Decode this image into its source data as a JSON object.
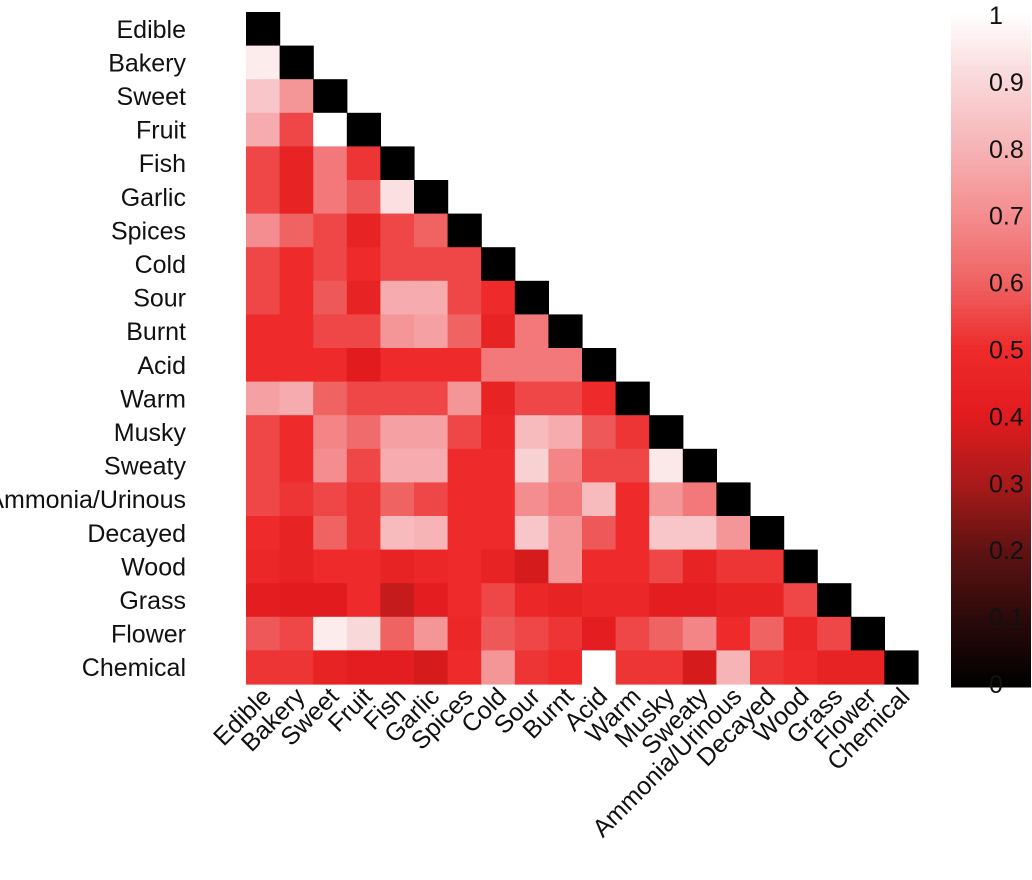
{
  "chart_data": {
    "type": "heatmap",
    "triangle": "lower",
    "categories": [
      "Edible",
      "Bakery",
      "Sweet",
      "Fruit",
      "Fish",
      "Garlic",
      "Spices",
      "Cold",
      "Sour",
      "Burnt",
      "Acid",
      "Warm",
      "Musky",
      "Sweaty",
      "Ammonia/Urinous",
      "Decayed",
      "Wood",
      "Grass",
      "Flower",
      "Chemical"
    ],
    "values": [
      [
        0
      ],
      [
        0.95,
        0
      ],
      [
        0.85,
        0.72,
        0
      ],
      [
        0.78,
        0.55,
        1.0,
        0
      ],
      [
        0.55,
        0.45,
        0.65,
        0.52,
        0
      ],
      [
        0.55,
        0.45,
        0.65,
        0.58,
        0.92,
        0
      ],
      [
        0.7,
        0.6,
        0.55,
        0.45,
        0.55,
        0.6,
        0
      ],
      [
        0.55,
        0.5,
        0.55,
        0.5,
        0.55,
        0.55,
        0.55,
        0
      ],
      [
        0.55,
        0.5,
        0.58,
        0.45,
        0.78,
        0.78,
        0.55,
        0.5,
        0
      ],
      [
        0.5,
        0.5,
        0.55,
        0.55,
        0.72,
        0.75,
        0.6,
        0.45,
        0.65,
        0
      ],
      [
        0.5,
        0.5,
        0.5,
        0.4,
        0.5,
        0.5,
        0.5,
        0.65,
        0.65,
        0.65,
        0
      ],
      [
        0.75,
        0.78,
        0.6,
        0.55,
        0.55,
        0.55,
        0.72,
        0.45,
        0.55,
        0.55,
        0.5,
        0
      ],
      [
        0.55,
        0.5,
        0.68,
        0.62,
        0.75,
        0.75,
        0.55,
        0.48,
        0.82,
        0.78,
        0.58,
        0.52,
        0
      ],
      [
        0.55,
        0.5,
        0.7,
        0.55,
        0.78,
        0.78,
        0.5,
        0.5,
        0.88,
        0.68,
        0.55,
        0.55,
        0.94,
        0
      ],
      [
        0.55,
        0.52,
        0.55,
        0.52,
        0.6,
        0.55,
        0.5,
        0.5,
        0.7,
        0.65,
        0.82,
        0.5,
        0.72,
        0.65,
        0
      ],
      [
        0.5,
        0.45,
        0.6,
        0.52,
        0.82,
        0.8,
        0.5,
        0.5,
        0.85,
        0.72,
        0.58,
        0.5,
        0.85,
        0.85,
        0.72,
        0
      ],
      [
        0.48,
        0.45,
        0.5,
        0.5,
        0.45,
        0.48,
        0.5,
        0.45,
        0.38,
        0.72,
        0.5,
        0.5,
        0.55,
        0.45,
        0.52,
        0.52,
        0
      ],
      [
        0.42,
        0.4,
        0.4,
        0.5,
        0.35,
        0.42,
        0.5,
        0.55,
        0.48,
        0.45,
        0.48,
        0.48,
        0.42,
        0.42,
        0.45,
        0.45,
        0.55,
        0
      ],
      [
        0.58,
        0.55,
        0.95,
        0.9,
        0.6,
        0.72,
        0.48,
        0.58,
        0.55,
        0.52,
        0.42,
        0.55,
        0.6,
        0.68,
        0.5,
        0.6,
        0.48,
        0.55,
        0
      ],
      [
        0.52,
        0.52,
        0.45,
        0.42,
        0.42,
        0.38,
        0.5,
        0.72,
        0.52,
        0.5,
        1.0,
        0.52,
        0.52,
        0.38,
        0.8,
        0.52,
        0.5,
        0.45,
        0.45,
        0
      ]
    ],
    "colorbar": {
      "min": 0,
      "max": 1,
      "ticks": [
        "1",
        "0.9",
        "0.8",
        "0.7",
        "0.6",
        "0.5",
        "0.4",
        "0.3",
        "0.2",
        "0.1",
        "0"
      ],
      "colors": [
        "#000000",
        "#2a0a0a",
        "#5e1212",
        "#a81a1a",
        "#e21b1e",
        "#ee2a2a",
        "#ef6363",
        "#f48d8f",
        "#f6b4b6",
        "#f9d8d9",
        "#ffffff"
      ]
    },
    "legend": "right",
    "grid": false
  }
}
